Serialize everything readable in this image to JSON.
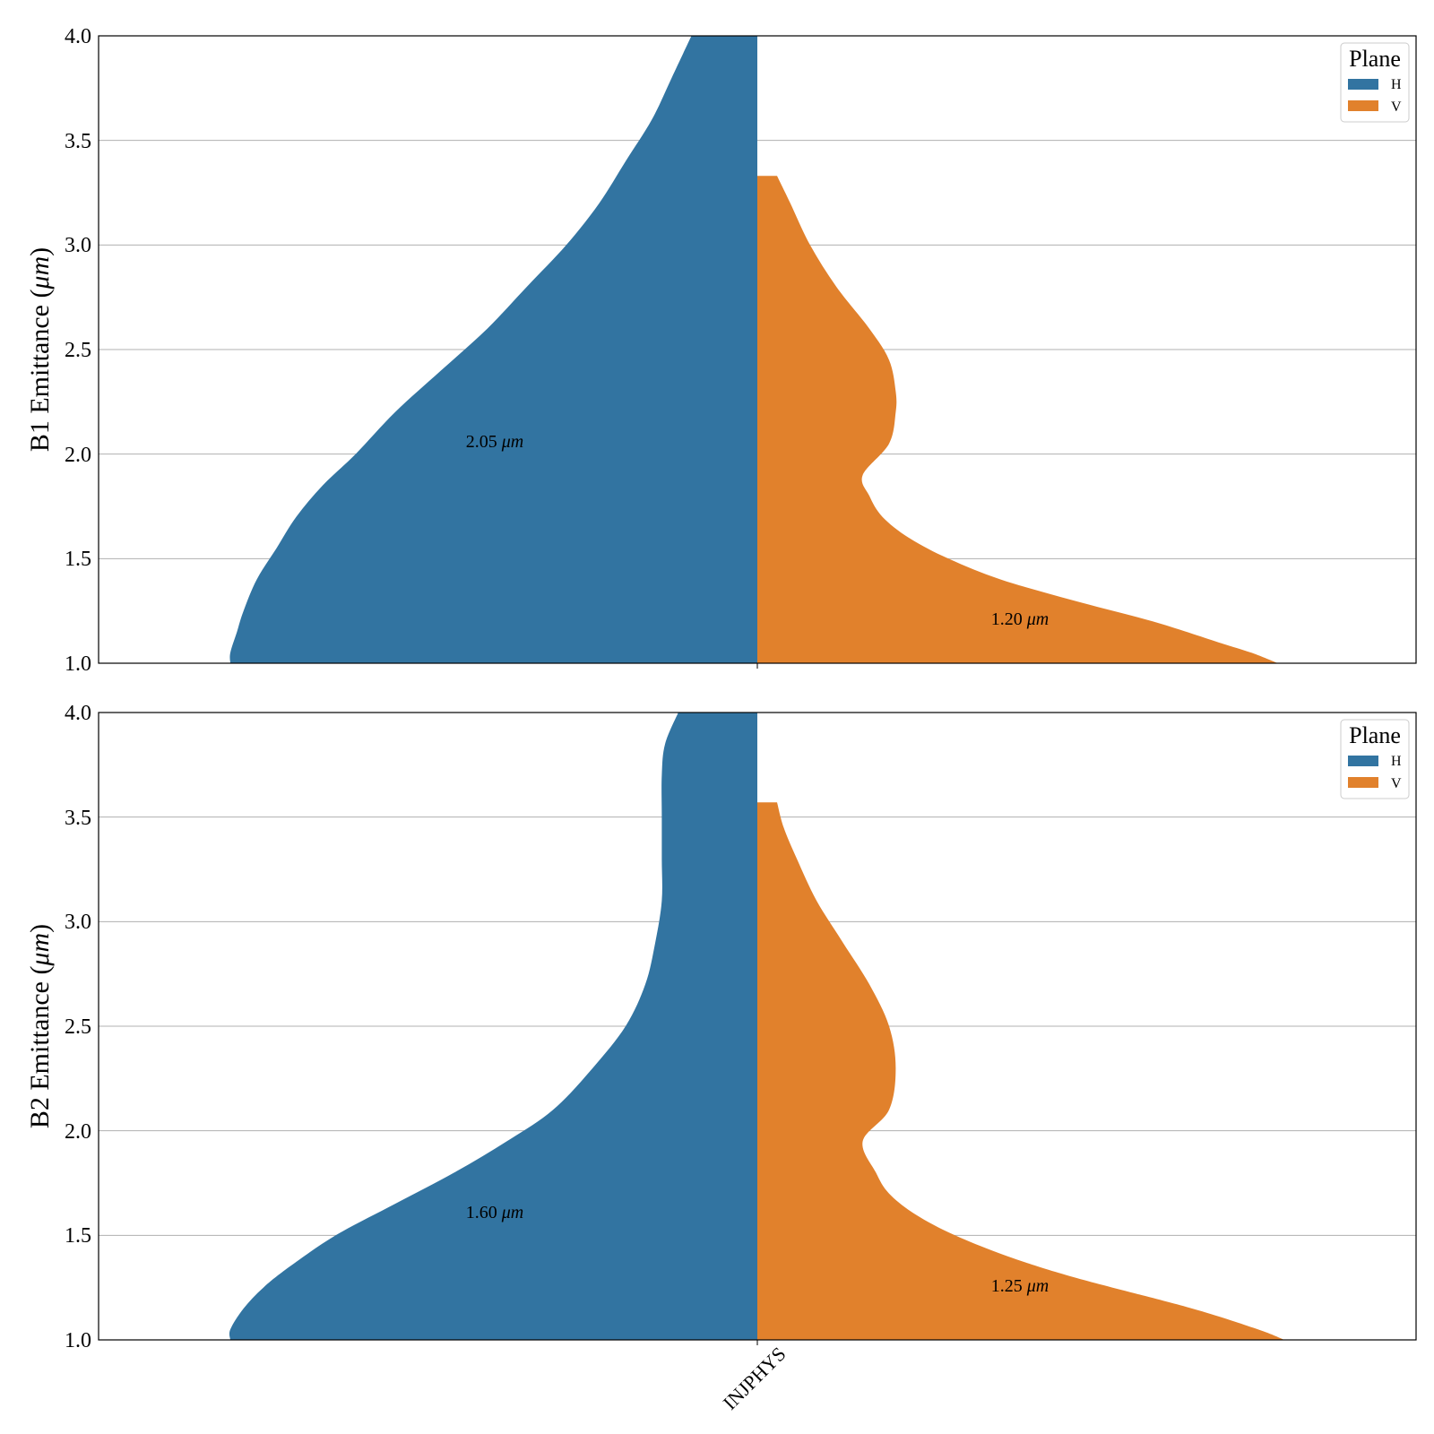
{
  "chart_data": [
    {
      "type": "violin",
      "ylabel": "B1 Emittance (μm)",
      "ylabel_parts": [
        "B1 Emittance (",
        "μm",
        ")"
      ],
      "ylim": [
        1.0,
        4.0
      ],
      "yticks": [
        "1.0",
        "1.5",
        "2.0",
        "2.5",
        "3.0",
        "3.5",
        "4.0"
      ],
      "grid": "horizontal",
      "legend": {
        "title": "Plane",
        "position": "top-right",
        "entries": [
          "H",
          "V"
        ]
      },
      "categories": [
        "INJPHYS"
      ],
      "series": [
        {
          "name": "H",
          "color": "#3274a1",
          "side": "left",
          "median_label_parts": [
            "2.05 ",
            "μm"
          ],
          "median": 2.05,
          "label_y": 2.05,
          "density": [
            [
              1.0,
              0.8
            ],
            [
              1.05,
              0.8
            ],
            [
              1.15,
              0.79
            ],
            [
              1.25,
              0.78
            ],
            [
              1.4,
              0.76
            ],
            [
              1.55,
              0.73
            ],
            [
              1.7,
              0.7
            ],
            [
              1.85,
              0.66
            ],
            [
              2.0,
              0.61
            ],
            [
              2.2,
              0.55
            ],
            [
              2.4,
              0.48
            ],
            [
              2.6,
              0.41
            ],
            [
              2.8,
              0.35
            ],
            [
              3.0,
              0.29
            ],
            [
              3.2,
              0.24
            ],
            [
              3.4,
              0.2
            ],
            [
              3.6,
              0.16
            ],
            [
              3.8,
              0.13
            ],
            [
              4.0,
              0.1
            ]
          ]
        },
        {
          "name": "V",
          "color": "#e1812c",
          "side": "right",
          "median_label_parts": [
            "1.20 ",
            "μm"
          ],
          "median": 1.2,
          "label_y": 1.2,
          "density": [
            [
              1.0,
              0.79
            ],
            [
              1.05,
              0.75
            ],
            [
              1.1,
              0.7
            ],
            [
              1.2,
              0.6
            ],
            [
              1.3,
              0.48
            ],
            [
              1.4,
              0.37
            ],
            [
              1.5,
              0.29
            ],
            [
              1.6,
              0.23
            ],
            [
              1.7,
              0.19
            ],
            [
              1.8,
              0.17
            ],
            [
              1.9,
              0.16
            ],
            [
              2.05,
              0.2
            ],
            [
              2.2,
              0.21
            ],
            [
              2.3,
              0.21
            ],
            [
              2.45,
              0.2
            ],
            [
              2.6,
              0.17
            ],
            [
              2.8,
              0.12
            ],
            [
              3.0,
              0.08
            ],
            [
              3.2,
              0.05
            ],
            [
              3.33,
              0.03
            ]
          ]
        }
      ]
    },
    {
      "type": "violin",
      "ylabel": "B2 Emittance (μm)",
      "ylabel_parts": [
        "B2 Emittance (",
        "μm",
        ")"
      ],
      "ylim": [
        1.0,
        4.0
      ],
      "yticks": [
        "1.0",
        "1.5",
        "2.0",
        "2.5",
        "3.0",
        "3.5",
        "4.0"
      ],
      "grid": "horizontal",
      "legend": {
        "title": "Plane",
        "position": "top-right",
        "entries": [
          "H",
          "V"
        ]
      },
      "categories": [
        "INJPHYS"
      ],
      "xtick_labels": [
        "INJPHYS"
      ],
      "series": [
        {
          "name": "H",
          "color": "#3274a1",
          "side": "left",
          "median_label_parts": [
            "1.60 ",
            "μm"
          ],
          "median": 1.6,
          "label_y": 1.6,
          "density": [
            [
              1.0,
              0.8
            ],
            [
              1.05,
              0.8
            ],
            [
              1.15,
              0.78
            ],
            [
              1.25,
              0.75
            ],
            [
              1.35,
              0.71
            ],
            [
              1.5,
              0.64
            ],
            [
              1.65,
              0.55
            ],
            [
              1.8,
              0.46
            ],
            [
              1.95,
              0.38
            ],
            [
              2.1,
              0.31
            ],
            [
              2.3,
              0.25
            ],
            [
              2.5,
              0.2
            ],
            [
              2.7,
              0.17
            ],
            [
              2.9,
              0.155
            ],
            [
              3.1,
              0.145
            ],
            [
              3.3,
              0.145
            ],
            [
              3.5,
              0.145
            ],
            [
              3.7,
              0.145
            ],
            [
              3.85,
              0.14
            ],
            [
              4.0,
              0.12
            ]
          ]
        },
        {
          "name": "V",
          "color": "#e1812c",
          "side": "right",
          "median_label_parts": [
            "1.25 ",
            "μm"
          ],
          "median": 1.25,
          "label_y": 1.25,
          "density": [
            [
              1.0,
              0.8
            ],
            [
              1.05,
              0.76
            ],
            [
              1.15,
              0.66
            ],
            [
              1.3,
              0.48
            ],
            [
              1.4,
              0.38
            ],
            [
              1.5,
              0.3
            ],
            [
              1.6,
              0.24
            ],
            [
              1.7,
              0.2
            ],
            [
              1.8,
              0.18
            ],
            [
              1.95,
              0.16
            ],
            [
              2.1,
              0.2
            ],
            [
              2.3,
              0.21
            ],
            [
              2.5,
              0.2
            ],
            [
              2.7,
              0.17
            ],
            [
              2.9,
              0.13
            ],
            [
              3.1,
              0.09
            ],
            [
              3.3,
              0.06
            ],
            [
              3.45,
              0.04
            ],
            [
              3.57,
              0.03
            ]
          ]
        }
      ]
    }
  ]
}
